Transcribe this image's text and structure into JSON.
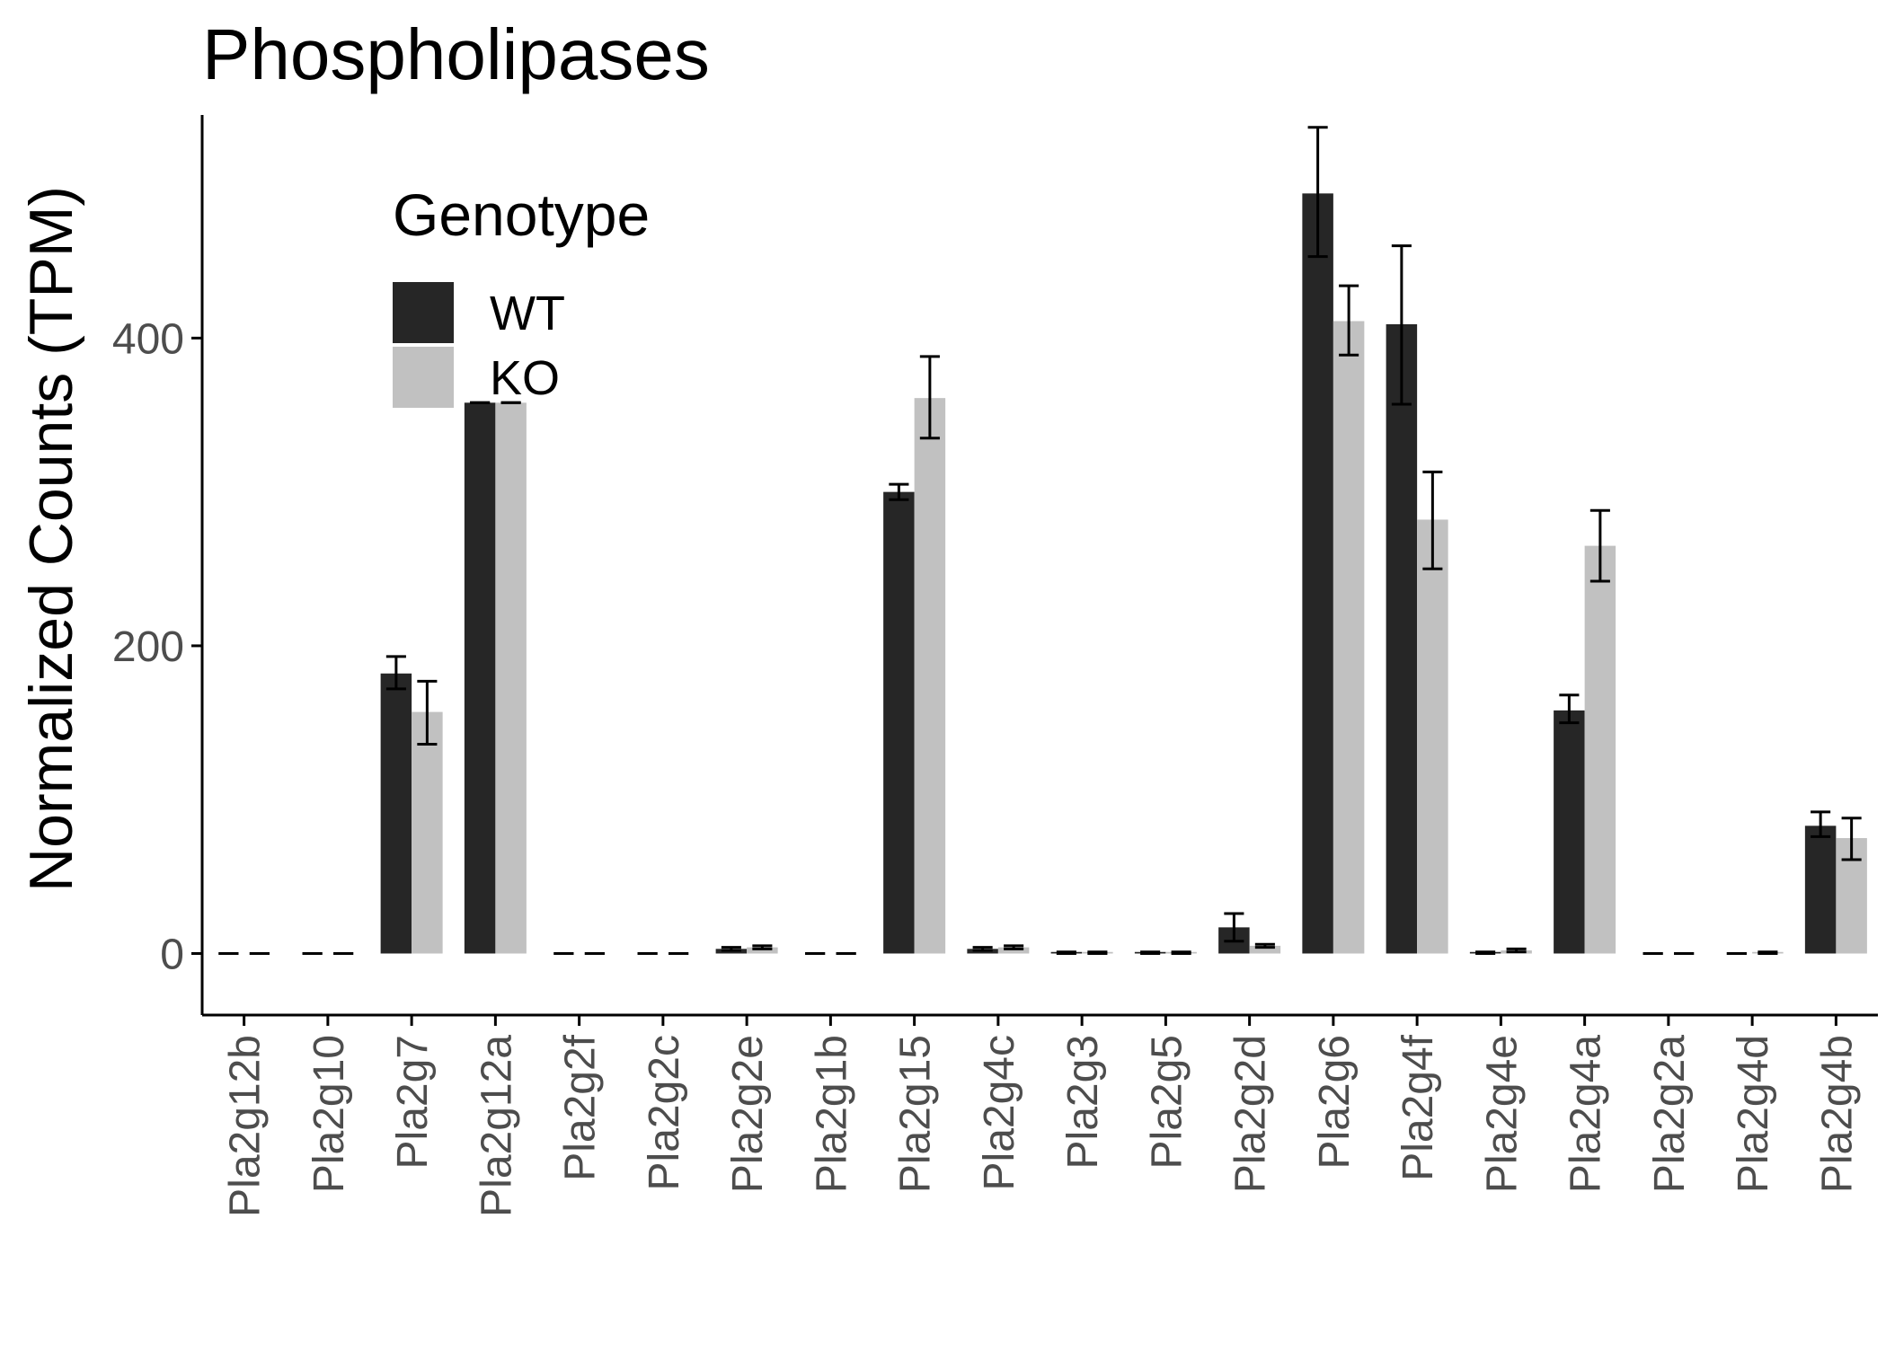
{
  "chart_data": {
    "type": "bar",
    "title": "Phospholipases",
    "xlabel": "",
    "ylabel": "Normalized Counts (TPM)",
    "ylim": [
      -40,
      545
    ],
    "yticks": [
      0,
      200,
      400
    ],
    "grid": false,
    "legend": {
      "title": "Genotype",
      "placement": "top-left"
    },
    "categories": [
      "Pla2g12b",
      "Pla2g10",
      "Pla2g7",
      "Pla2g12a",
      "Pla2g2f",
      "Pla2g2c",
      "Pla2g2e",
      "Pla2g1b",
      "Pla2g15",
      "Pla2g4c",
      "Pla2g3",
      "Pla2g5",
      "Pla2g2d",
      "Pla2g6",
      "Pla2g4f",
      "Pla2g4e",
      "Pla2g4a",
      "Pla2g2a",
      "Pla2g4d",
      "Pla2g4b"
    ],
    "series": [
      {
        "name": "WT",
        "color": "#262626",
        "values": [
          0,
          0,
          182,
          358,
          0,
          0,
          3,
          0,
          300,
          3,
          1,
          1,
          17,
          494,
          409,
          1,
          158,
          0,
          0,
          83
        ],
        "err_low": [
          0,
          0,
          172,
          358,
          0,
          0,
          2,
          0,
          295,
          2,
          0,
          0,
          8,
          453,
          357,
          0,
          150,
          0,
          0,
          76
        ],
        "err_high": [
          0,
          0,
          193,
          358,
          0,
          0,
          4,
          0,
          305,
          4,
          1,
          1,
          26,
          537,
          460,
          1,
          168,
          0,
          0,
          92
        ]
      },
      {
        "name": "KO",
        "color": "#c1c1c1",
        "values": [
          0,
          0,
          157,
          358,
          0,
          0,
          4,
          0,
          361,
          4,
          1,
          1,
          5,
          411,
          282,
          2,
          265,
          0,
          1,
          75
        ],
        "err_low": [
          0,
          0,
          136,
          358,
          0,
          0,
          3,
          0,
          335,
          3,
          0,
          0,
          4,
          389,
          250,
          1,
          242,
          0,
          0,
          61
        ],
        "err_high": [
          0,
          0,
          177,
          358,
          0,
          0,
          5,
          0,
          388,
          5,
          1,
          1,
          6,
          434,
          313,
          3,
          288,
          0,
          1,
          88
        ]
      }
    ]
  }
}
